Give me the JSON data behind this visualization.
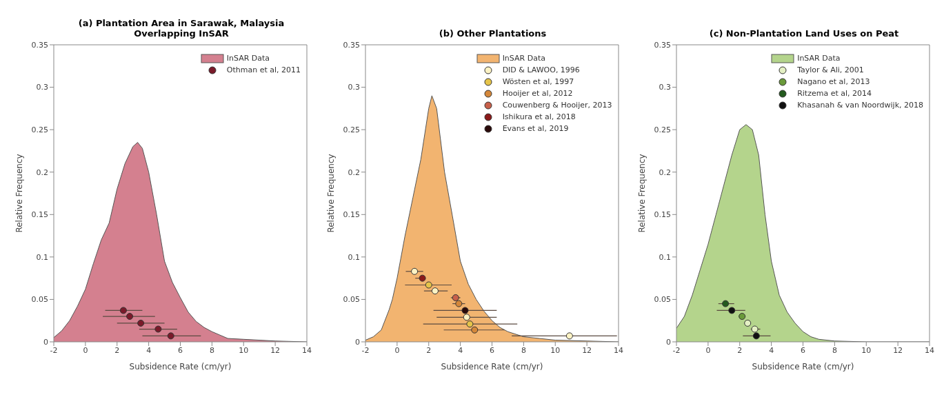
{
  "chart_data": [
    {
      "type": "area",
      "title": "(a) Plantation Area in Sarawak, Malaysia Overlapping InSAR",
      "xlabel": "Subsidence Rate (cm/yr)",
      "ylabel": "Relative Frequency",
      "xlim": [
        -2,
        14
      ],
      "ylim": [
        0,
        0.35
      ],
      "xticks": [
        -2,
        0,
        2,
        4,
        6,
        8,
        10,
        12,
        14
      ],
      "yticks": [
        0,
        0.05,
        0.1,
        0.15,
        0.2,
        0.25,
        0.3,
        0.35
      ],
      "legend": "top right",
      "series": [
        {
          "name": "InSAR Data",
          "color": "#d4808f",
          "x": [
            -2,
            -1.5,
            -1,
            -0.5,
            0,
            0.5,
            1,
            1.5,
            2,
            2.5,
            3,
            3.3,
            3.6,
            4,
            4.5,
            5,
            5.5,
            6,
            6.5,
            7,
            7.5,
            8,
            8.5,
            9,
            10,
            12,
            14
          ],
          "values": [
            0.005,
            0.013,
            0.025,
            0.042,
            0.062,
            0.092,
            0.12,
            0.14,
            0.18,
            0.21,
            0.23,
            0.235,
            0.228,
            0.2,
            0.15,
            0.095,
            0.07,
            0.052,
            0.035,
            0.024,
            0.017,
            0.012,
            0.008,
            0.004,
            0.003,
            0.001,
            0
          ]
        },
        {
          "name": "Othman et al, 2011",
          "type": "scatter",
          "marker": "circle",
          "color": "#7a1a2a",
          "x": [
            2.4,
            2.8,
            3.5,
            4.6,
            5.4
          ],
          "values": [
            0.037,
            0.03,
            0.022,
            0.015,
            0.007
          ],
          "xerrors": [
            [
              1.25,
              3.6
            ],
            [
              1.1,
              4.4
            ],
            [
              2,
              5
            ],
            [
              3.4,
              5.8
            ],
            [
              3.6,
              7.3
            ]
          ]
        }
      ]
    },
    {
      "type": "area",
      "title": "(b) Other Plantations",
      "xlabel": "Subsidence Rate (cm/yr)",
      "ylabel": "Relative Frequency",
      "xlim": [
        -2,
        14
      ],
      "ylim": [
        0,
        0.35
      ],
      "xticks": [
        -2,
        0,
        2,
        4,
        6,
        8,
        10,
        12,
        14
      ],
      "yticks": [
        0,
        0.05,
        0.1,
        0.15,
        0.2,
        0.25,
        0.3,
        0.35
      ],
      "legend": "top right",
      "series": [
        {
          "name": "InSAR Data",
          "color": "#f2b470",
          "x": [
            -2,
            -1.5,
            -1,
            -0.5,
            -0.3,
            0,
            0.5,
            1,
            1.5,
            2,
            2.2,
            2.5,
            3,
            3.5,
            4,
            4.5,
            5,
            5.5,
            6,
            6.5,
            7,
            8,
            9,
            10,
            12,
            14
          ],
          "values": [
            0.002,
            0.006,
            0.014,
            0.038,
            0.05,
            0.075,
            0.125,
            0.17,
            0.215,
            0.275,
            0.29,
            0.275,
            0.2,
            0.148,
            0.095,
            0.068,
            0.05,
            0.036,
            0.025,
            0.017,
            0.012,
            0.006,
            0.004,
            0.002,
            0.001,
            0
          ]
        },
        {
          "name": "DID & LAWOO, 1996",
          "type": "scatter",
          "marker": "circle",
          "color": "#fdf3c4",
          "x": [
            1.1,
            2.4,
            4.4,
            10.9
          ],
          "values": [
            0.083,
            0.06,
            0.029,
            0.007
          ],
          "xerrors": [
            [
              0.55,
              1.65
            ],
            [
              1.7,
              3.2
            ],
            [
              2.5,
              6.3
            ],
            [
              7.25,
              13.9
            ]
          ]
        },
        {
          "name": "Wösten et al, 1997",
          "type": "scatter",
          "marker": "circle",
          "color": "#e6c44a",
          "x": [
            2,
            4.6
          ],
          "values": [
            0.067,
            0.021
          ],
          "xerrors": [
            [
              0.5,
              3.45
            ],
            [
              1.65,
              7.6
            ]
          ]
        },
        {
          "name": "Hooijer et al, 2012",
          "type": "scatter",
          "marker": "circle",
          "color": "#d4873a",
          "x": [
            3.9,
            4.9
          ],
          "values": [
            0.045,
            0.014
          ],
          "xerrors": [
            [
              3.5,
              4.3
            ],
            [
              2.95,
              6.8
            ]
          ]
        },
        {
          "name": "Couwenberg & Hooijer, 2013",
          "type": "scatter",
          "marker": "circle",
          "color": "#c8604a",
          "x": [
            3.7
          ],
          "values": [
            0.052
          ],
          "xerrors": [
            [
              3.4,
              4
            ]
          ]
        },
        {
          "name": "Ishikura et al, 2018",
          "type": "scatter",
          "marker": "circle",
          "color": "#8b1a1a",
          "x": [
            1.6
          ],
          "values": [
            0.075
          ],
          "xerrors": [
            [
              1.15,
              1.8
            ]
          ]
        },
        {
          "name": "Evans et al, 2019",
          "type": "scatter",
          "marker": "circle",
          "color": "#2a0a0a",
          "x": [
            4.3
          ],
          "values": [
            0.037
          ],
          "xerrors": [
            [
              2.3,
              6.3
            ]
          ]
        }
      ]
    },
    {
      "type": "area",
      "title": "(c) Non-Plantation Land Uses on Peat",
      "xlabel": "Subsidence Rate (cm/yr)",
      "ylabel": "Relative Frequency",
      "xlim": [
        -2,
        14
      ],
      "ylim": [
        0,
        0.35
      ],
      "xticks": [
        -2,
        0,
        2,
        4,
        6,
        8,
        10,
        12,
        14
      ],
      "yticks": [
        0,
        0.05,
        0.1,
        0.15,
        0.2,
        0.25,
        0.3,
        0.35
      ],
      "legend": "top right",
      "series": [
        {
          "name": "InSAR Data",
          "color": "#b4d48c",
          "x": [
            -2,
            -1.5,
            -1,
            -0.5,
            0,
            0.5,
            1,
            1.5,
            2,
            2.4,
            2.8,
            3.2,
            3.6,
            4,
            4.5,
            5,
            5.5,
            6,
            6.5,
            7,
            8,
            10,
            14
          ],
          "values": [
            0.016,
            0.03,
            0.055,
            0.085,
            0.115,
            0.15,
            0.185,
            0.22,
            0.25,
            0.256,
            0.25,
            0.22,
            0.15,
            0.095,
            0.055,
            0.035,
            0.022,
            0.012,
            0.006,
            0.003,
            0.001,
            0,
            0
          ]
        },
        {
          "name": "Taylor & Ali, 2001",
          "type": "scatter",
          "marker": "circle",
          "color": "#e4f0c4",
          "x": [
            2.5,
            2.95
          ],
          "values": [
            0.022,
            0.015
          ],
          "xerrors": [
            [
              2.3,
              2.7
            ],
            [
              2.7,
              3.3
            ]
          ]
        },
        {
          "name": "Nagano et al, 2013",
          "type": "scatter",
          "marker": "circle",
          "color": "#6a9a3a",
          "x": [
            2.15
          ],
          "values": [
            0.03
          ],
          "xerrors": [
            [
              1.95,
              2.35
            ]
          ]
        },
        {
          "name": "Ritzema et al, 2014",
          "type": "scatter",
          "marker": "circle",
          "color": "#245a1e",
          "x": [
            1.1
          ],
          "values": [
            0.045
          ],
          "xerrors": [
            [
              0.65,
              1.65
            ]
          ]
        },
        {
          "name": "Khasanah & van Noordwijk, 2018",
          "type": "scatter",
          "marker": "circle",
          "color": "#111111",
          "x": [
            1.5,
            3.05
          ],
          "values": [
            0.037,
            0.007
          ],
          "xerrors": [
            [
              0.55,
              2.35
            ],
            [
              2.2,
              3.95
            ]
          ]
        }
      ]
    }
  ]
}
